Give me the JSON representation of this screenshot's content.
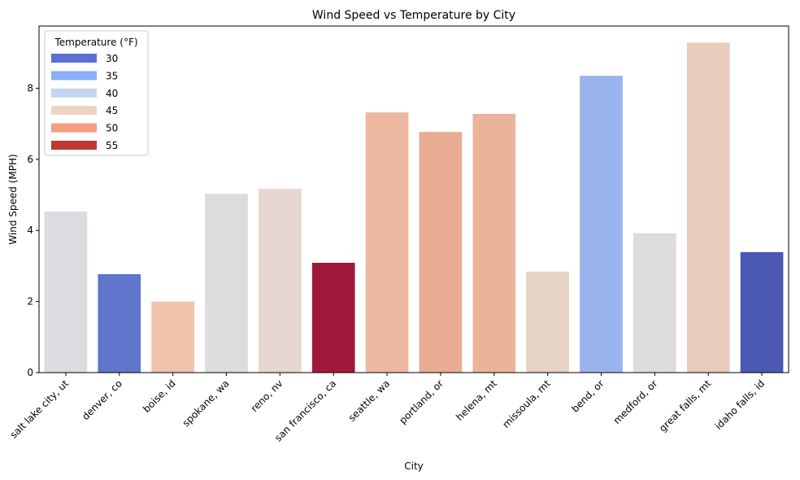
{
  "chart_data": {
    "type": "bar",
    "title": "Wind Speed vs Temperature by City",
    "xlabel": "City",
    "ylabel": "Wind Speed (MPH)",
    "ylim": [
      0,
      9.75
    ],
    "yticks": [
      0,
      2,
      4,
      6,
      8
    ],
    "grid": false,
    "legend": {
      "title": "Temperature (°F)",
      "placement": "top-left",
      "entries": [
        {
          "label": "30",
          "color": "#5a70d3"
        },
        {
          "label": "35",
          "color": "#8daef8"
        },
        {
          "label": "40",
          "color": "#c4d5f3"
        },
        {
          "label": "45",
          "color": "#ecd3c5"
        },
        {
          "label": "50",
          "color": "#f29f80"
        },
        {
          "label": "55",
          "color": "#c0392f"
        }
      ]
    },
    "categories": [
      "salt lake city, ut",
      "denver, co",
      "boise, id",
      "spokane, wa",
      "reno, nv",
      "san francisco, ca",
      "seattle, wa",
      "portland, or",
      "helena, mt",
      "missoula, mt",
      "bend, or",
      "medford, or",
      "great falls, mt",
      "idaho falls, id"
    ],
    "values": [
      4.53,
      2.77,
      2.0,
      5.03,
      5.17,
      3.09,
      7.32,
      6.77,
      7.28,
      2.84,
      8.35,
      3.92,
      9.28,
      3.39
    ],
    "colors": [
      "#dadce0",
      "#5f76cc",
      "#f0c3ad",
      "#dddcdb",
      "#e6d8d0",
      "#a0193a",
      "#ecb8a0",
      "#e9ac93",
      "#eab49b",
      "#e7d2c6",
      "#99b3ec",
      "#dddcdb",
      "#e9cbbb",
      "#4b58b1"
    ]
  }
}
